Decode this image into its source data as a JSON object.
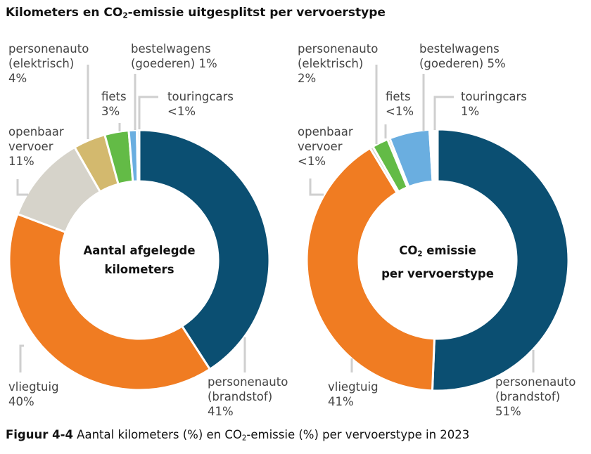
{
  "title": {
    "pre": "Kilometers en CO",
    "sub": "2",
    "post": "-emissie uitgesplitst per vervoerstype"
  },
  "caption": {
    "bold": "Figuur 4-4",
    "pre": " Aantal kilometers (%) en CO",
    "sub": "2",
    "post": "-emissie (%) per vervoerstype in 2023"
  },
  "chart_data": [
    {
      "type": "pie",
      "donut": true,
      "center_label": {
        "line1": "Aantal afgelegde",
        "line2": "kilometers"
      },
      "slices": [
        {
          "name": "personenauto (brandstof)",
          "line1": "personenauto",
          "line2": "(brandstof)",
          "label": "41%",
          "value": 41,
          "color": "#0b4f72"
        },
        {
          "name": "vliegtuig",
          "line1": "vliegtuig",
          "line2": "",
          "label": "40%",
          "value": 40,
          "color": "#f07c22"
        },
        {
          "name": "openbaar vervoer",
          "line1": "openbaar",
          "line2": "vervoer",
          "label": "11%",
          "value": 11,
          "color": "#d6d3ca"
        },
        {
          "name": "personenauto (elektrisch)",
          "line1": "personenauto",
          "line2": "(elektrisch)",
          "label": "4%",
          "value": 4,
          "color": "#d3b96e"
        },
        {
          "name": "fiets",
          "line1": "fiets",
          "line2": "",
          "label": "3%",
          "value": 3,
          "color": "#63bb46"
        },
        {
          "name": "bestelwagens (goederen)",
          "line1": "bestelwagens",
          "line2": "(goederen)",
          "label": "1%",
          "value": 1,
          "color": "#6aaee0"
        },
        {
          "name": "touringcars",
          "line1": "touringcars",
          "line2": "",
          "label": "<1%",
          "value": 0.3,
          "color": "#c9dceb"
        }
      ]
    },
    {
      "type": "pie",
      "donut": true,
      "center_label": {
        "pre": "CO",
        "sub": "2",
        "post": " emissie",
        "line2": "per vervoerstype"
      },
      "slices": [
        {
          "name": "personenauto (brandstof)",
          "line1": "personenauto",
          "line2": "(brandstof)",
          "label": "51%",
          "value": 51,
          "color": "#0b4f72"
        },
        {
          "name": "vliegtuig",
          "line1": "vliegtuig",
          "line2": "",
          "label": "41%",
          "value": 41,
          "color": "#f07c22"
        },
        {
          "name": "openbaar vervoer",
          "line1": "openbaar",
          "line2": "vervoer",
          "label": "<1%",
          "value": 0.4,
          "color": "#d6d3ca"
        },
        {
          "name": "personenauto (elektrisch)",
          "line1": "personenauto",
          "line2": "(elektrisch)",
          "label": "2%",
          "value": 2,
          "color": "#63bb46"
        },
        {
          "name": "fiets",
          "line1": "fiets",
          "line2": "",
          "label": "<1%",
          "value": 0.3,
          "color": "#d3b96e"
        },
        {
          "name": "bestelwagens (goederen)",
          "line1": "bestelwagens",
          "line2": "(goederen)",
          "label": "5%",
          "value": 5,
          "color": "#6aaee0"
        },
        {
          "name": "touringcars",
          "line1": "touringcars",
          "line2": "",
          "label": "1%",
          "value": 1,
          "color": "#ffffff"
        }
      ]
    }
  ]
}
